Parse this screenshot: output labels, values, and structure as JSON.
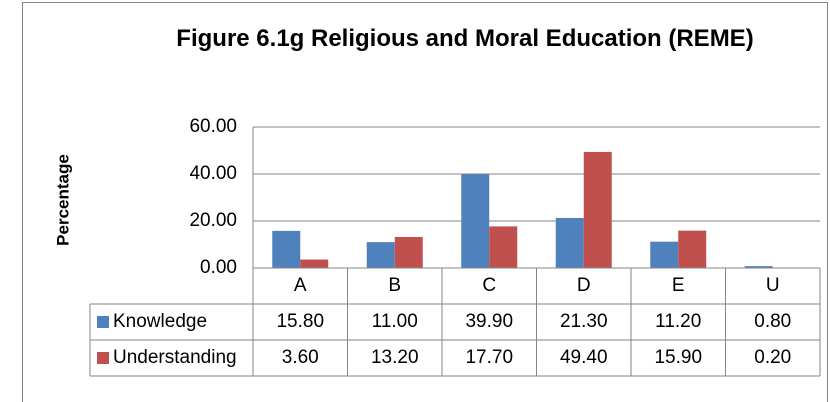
{
  "chart_data": {
    "type": "bar",
    "title": "Figure 6.1g Religious and Moral Education (REME)",
    "y_label": "Percentage",
    "categories": [
      "A",
      "B",
      "C",
      "D",
      "E",
      "U"
    ],
    "series": [
      {
        "name": "Knowledge",
        "color": "#4f81bd",
        "values": [
          15.8,
          11.0,
          39.9,
          21.3,
          11.2,
          0.8
        ],
        "value_labels": [
          "15.80",
          "11.00",
          "39.90",
          "21.30",
          "11.20",
          "0.80"
        ]
      },
      {
        "name": "Understanding",
        "color": "#c0504d",
        "values": [
          3.6,
          13.2,
          17.7,
          49.4,
          15.9,
          0.2
        ],
        "value_labels": [
          "3.60",
          "13.20",
          "17.70",
          "49.40",
          "15.90",
          "0.20"
        ]
      }
    ],
    "ylim": [
      0,
      60
    ],
    "yticks": [
      {
        "value": 0,
        "label": "0.00"
      },
      {
        "value": 20,
        "label": "20.00"
      },
      {
        "value": 40,
        "label": "40.00"
      },
      {
        "value": 60,
        "label": "60.00"
      }
    ],
    "grid": true
  }
}
